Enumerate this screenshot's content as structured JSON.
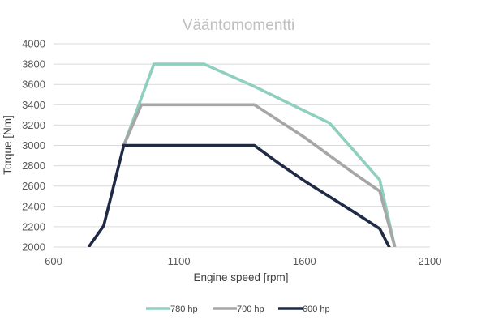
{
  "chart_data": {
    "type": "line",
    "title": "Vääntomomentti",
    "xlabel": "Engine speed [rpm]",
    "ylabel": "Torque [Nm]",
    "xlim": [
      600,
      2100
    ],
    "ylim": [
      2000,
      4000
    ],
    "xticks": [
      "600",
      "1100",
      "1600",
      "2100"
    ],
    "yticks": [
      "2000",
      "2200",
      "2400",
      "2600",
      "2800",
      "3000",
      "3200",
      "3400",
      "3600",
      "3800",
      "4000"
    ],
    "grid": "horizontal",
    "legend_position": "bottom",
    "series": [
      {
        "name": "780 hp",
        "color": "#8fcfbf",
        "points": [
          [
            880,
            3000
          ],
          [
            1000,
            3800
          ],
          [
            1200,
            3800
          ],
          [
            1400,
            3580
          ],
          [
            1500,
            3460
          ],
          [
            1700,
            3220
          ],
          [
            1800,
            2940
          ],
          [
            1900,
            2660
          ],
          [
            1960,
            2000
          ]
        ]
      },
      {
        "name": "700 hp",
        "color": "#a6a6a6",
        "points": [
          [
            880,
            3000
          ],
          [
            950,
            3400
          ],
          [
            1200,
            3400
          ],
          [
            1400,
            3400
          ],
          [
            1600,
            3080
          ],
          [
            1800,
            2720
          ],
          [
            1900,
            2550
          ],
          [
            1960,
            2000
          ]
        ]
      },
      {
        "name": "600 hp",
        "color": "#1f2a44",
        "points": [
          [
            740,
            2000
          ],
          [
            800,
            2210
          ],
          [
            880,
            3000
          ],
          [
            1400,
            3000
          ],
          [
            1500,
            2820
          ],
          [
            1600,
            2650
          ],
          [
            1800,
            2340
          ],
          [
            1900,
            2180
          ],
          [
            1950,
            1940
          ]
        ]
      }
    ]
  }
}
